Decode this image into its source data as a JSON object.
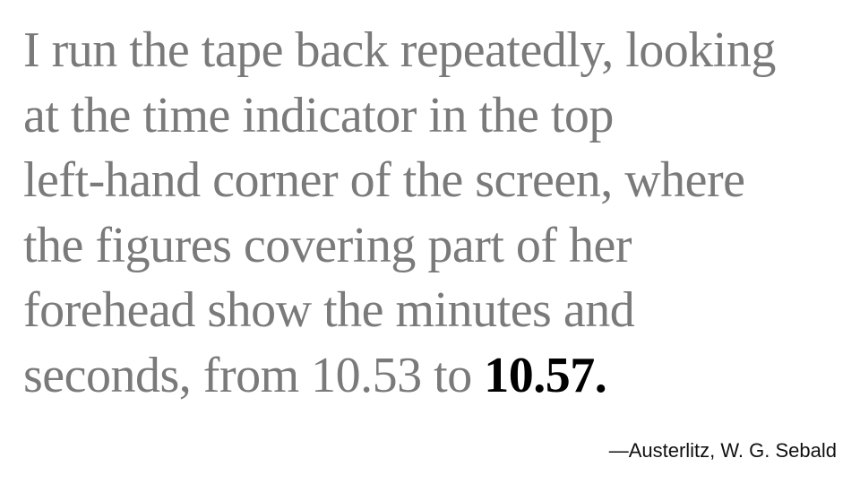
{
  "quote": {
    "lines": [
      "I run the tape back repeatedly, looking",
      "at the time indicator in the top",
      "left-hand corner of the screen, where",
      "the figures covering part of her",
      "forehead show the minutes and"
    ],
    "last_line_prefix": "seconds, from 10.53 to ",
    "last_line_emphasis": "10.57."
  },
  "attribution": "—Austerlitz, W. G. Sebald",
  "colors": {
    "quote_text": "#7a7a7a",
    "emphasis_text": "#000000",
    "attribution_text": "#111111",
    "background": "#ffffff"
  }
}
